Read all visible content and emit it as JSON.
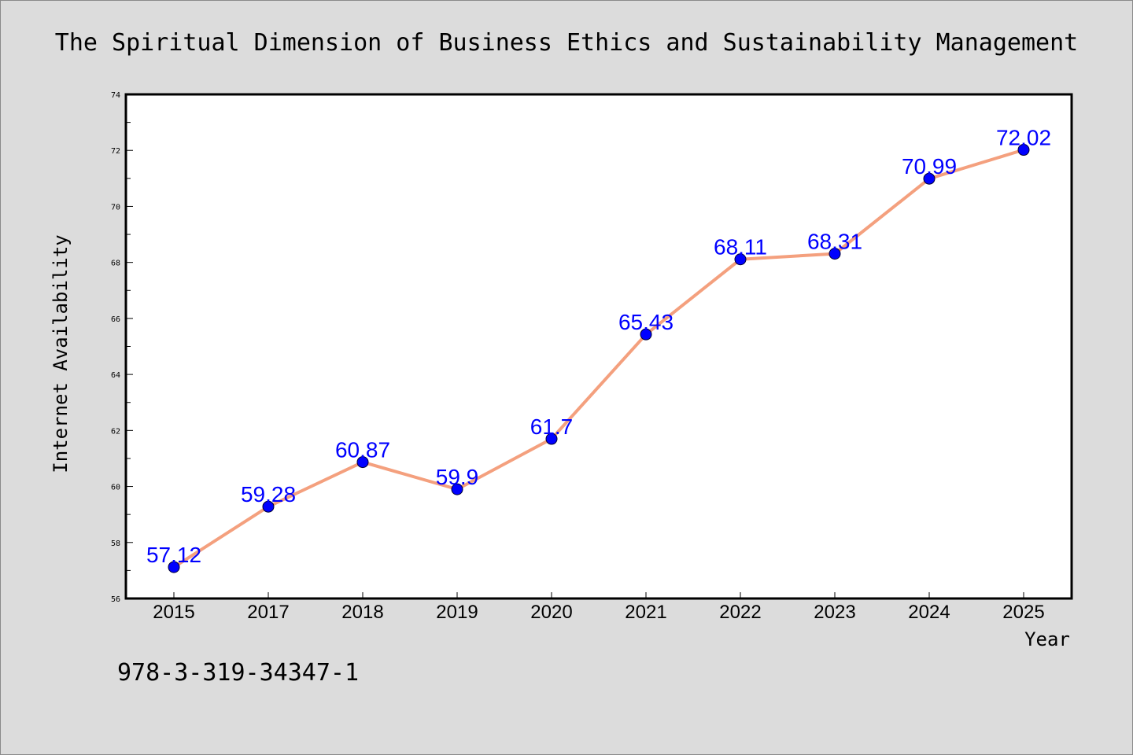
{
  "chart_data": {
    "type": "line",
    "title": "The Spiritual Dimension of Business Ethics and Sustainability Management",
    "xlabel": "Year",
    "ylabel": "Internet Availability",
    "categories": [
      "2015",
      "2017",
      "2018",
      "2019",
      "2020",
      "2021",
      "2022",
      "2023",
      "2024",
      "2025"
    ],
    "series": [
      {
        "values": [
          57.12,
          59.28,
          60.87,
          59.9,
          61.7,
          65.43,
          68.11,
          68.31,
          70.99,
          72.02
        ],
        "data_labels": [
          "57.12",
          "59.28",
          "60.87",
          "59.9",
          "61.7",
          "65.43",
          "68.11",
          "68.31",
          "70.99",
          "72.02"
        ],
        "line_color": "#f4a07e",
        "marker_color": "#0000ff"
      }
    ],
    "ylim": [
      56,
      74
    ],
    "yticks": [
      "56",
      "58",
      "60",
      "62",
      "64",
      "66",
      "68",
      "70",
      "72",
      "74"
    ],
    "grid": false,
    "legend": "none"
  },
  "footer_text": "978-3-319-34347-1",
  "colors": {
    "background": "#dcdcdc",
    "plot_background": "#ffffff",
    "line": "#f4a07e",
    "marker": "#0000ff",
    "data_label": "#0000ff"
  }
}
